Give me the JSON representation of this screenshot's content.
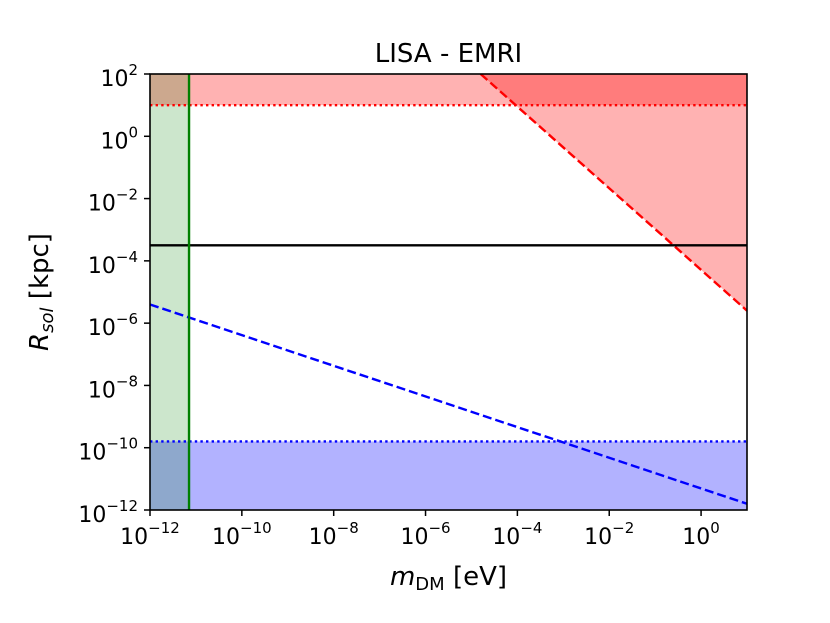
{
  "chart_data": {
    "type": "line",
    "title": "LISA - EMRI",
    "xlabel": {
      "main": "m",
      "sub": "DM",
      "unit": " [eV]"
    },
    "ylabel": {
      "main": "R",
      "sub": "sol",
      "unit": " [kpc]"
    },
    "xscale": "log",
    "yscale": "log",
    "xlim_log10": [
      -12,
      1
    ],
    "ylim_log10": [
      -12,
      2
    ],
    "xticks": [
      {
        "exp": -12,
        "base": "10",
        "sup": "−12"
      },
      {
        "exp": -10,
        "base": "10",
        "sup": "−10"
      },
      {
        "exp": -8,
        "base": "10",
        "sup": "−8"
      },
      {
        "exp": -6,
        "base": "10",
        "sup": "−6"
      },
      {
        "exp": -4,
        "base": "10",
        "sup": "−4"
      },
      {
        "exp": -2,
        "base": "10",
        "sup": "−2"
      },
      {
        "exp": 0,
        "base": "10",
        "sup": "0"
      }
    ],
    "yticks": [
      {
        "exp": 2,
        "base": "10",
        "sup": "2"
      },
      {
        "exp": 0,
        "base": "10",
        "sup": "0"
      },
      {
        "exp": -2,
        "base": "10",
        "sup": "−2"
      },
      {
        "exp": -4,
        "base": "10",
        "sup": "−4"
      },
      {
        "exp": -6,
        "base": "10",
        "sup": "−6"
      },
      {
        "exp": -8,
        "base": "10",
        "sup": "−8"
      },
      {
        "exp": -10,
        "base": "10",
        "sup": "−10"
      },
      {
        "exp": -12,
        "base": "10",
        "sup": "−12"
      }
    ],
    "grid": false,
    "regions": [
      {
        "kind": "hband",
        "name": "top-red-band",
        "y_log10": [
          1,
          2
        ],
        "color": "#ff0000",
        "opacity": 0.3
      },
      {
        "kind": "triangle",
        "name": "red-triangle-region",
        "points_log10": [
          [
            -4.8,
            2
          ],
          [
            1,
            2
          ],
          [
            1,
            -5.6
          ]
        ],
        "color": "#ff0000",
        "opacity": 0.3
      },
      {
        "kind": "hband",
        "name": "bottom-blue-band",
        "y_log10": [
          -12,
          -9.8
        ],
        "color": "#0000ff",
        "opacity": 0.3
      },
      {
        "kind": "vband",
        "name": "left-green-band",
        "x_log10": [
          -12,
          -11.15
        ],
        "color": "#008000",
        "opacity": 0.2
      }
    ],
    "lines": [
      {
        "name": "red-dashed-line",
        "style": "dashed",
        "color": "#ff0000",
        "points_log10": [
          [
            -4.8,
            2
          ],
          [
            1,
            -5.6
          ]
        ]
      },
      {
        "name": "red-dotted-line",
        "style": "dotted",
        "color": "#ff0000",
        "points_log10": [
          [
            -12,
            1
          ],
          [
            1,
            1
          ]
        ]
      },
      {
        "name": "black-solid-line",
        "style": "solid",
        "color": "#000000",
        "points_log10": [
          [
            -12,
            -3.5
          ],
          [
            1,
            -3.5
          ]
        ]
      },
      {
        "name": "blue-dashed-line",
        "style": "dashed",
        "color": "#0000ff",
        "points_log10": [
          [
            -12,
            -5.4
          ],
          [
            1,
            -11.8
          ]
        ]
      },
      {
        "name": "blue-dotted-line",
        "style": "dotted",
        "color": "#0000ff",
        "points_log10": [
          [
            -12,
            -9.8
          ],
          [
            1,
            -9.8
          ]
        ]
      },
      {
        "name": "green-solid-line",
        "style": "solid",
        "color": "#008000",
        "points_log10": [
          [
            -11.15,
            -12
          ],
          [
            -11.15,
            2
          ]
        ]
      }
    ]
  }
}
